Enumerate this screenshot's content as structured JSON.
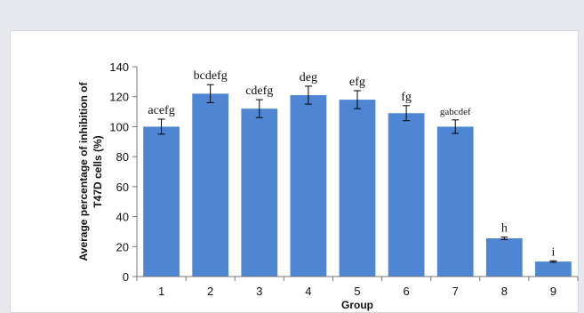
{
  "chart_data": {
    "type": "bar",
    "title": "",
    "xlabel": "Group",
    "ylabel_lines": [
      "Average percentage of inhibition of",
      "T47D cells (%)"
    ],
    "ylim": [
      0,
      140
    ],
    "yticks": [
      0,
      20,
      40,
      60,
      80,
      100,
      120,
      140
    ],
    "categories": [
      "1",
      "2",
      "3",
      "4",
      "5",
      "6",
      "7",
      "8",
      "9"
    ],
    "values": [
      100,
      122,
      112,
      121,
      118,
      109,
      100,
      25.5,
      10
    ],
    "errors": [
      5,
      6,
      6,
      6,
      6,
      5,
      4.5,
      0.8,
      0.5
    ],
    "significance": [
      "acefg",
      "bcdefg",
      "cdefg",
      "deg",
      "efg",
      "fg",
      "gabcdef",
      "h",
      "i"
    ],
    "bar_color": "#4f86d4",
    "grid": false,
    "legend": "none"
  }
}
